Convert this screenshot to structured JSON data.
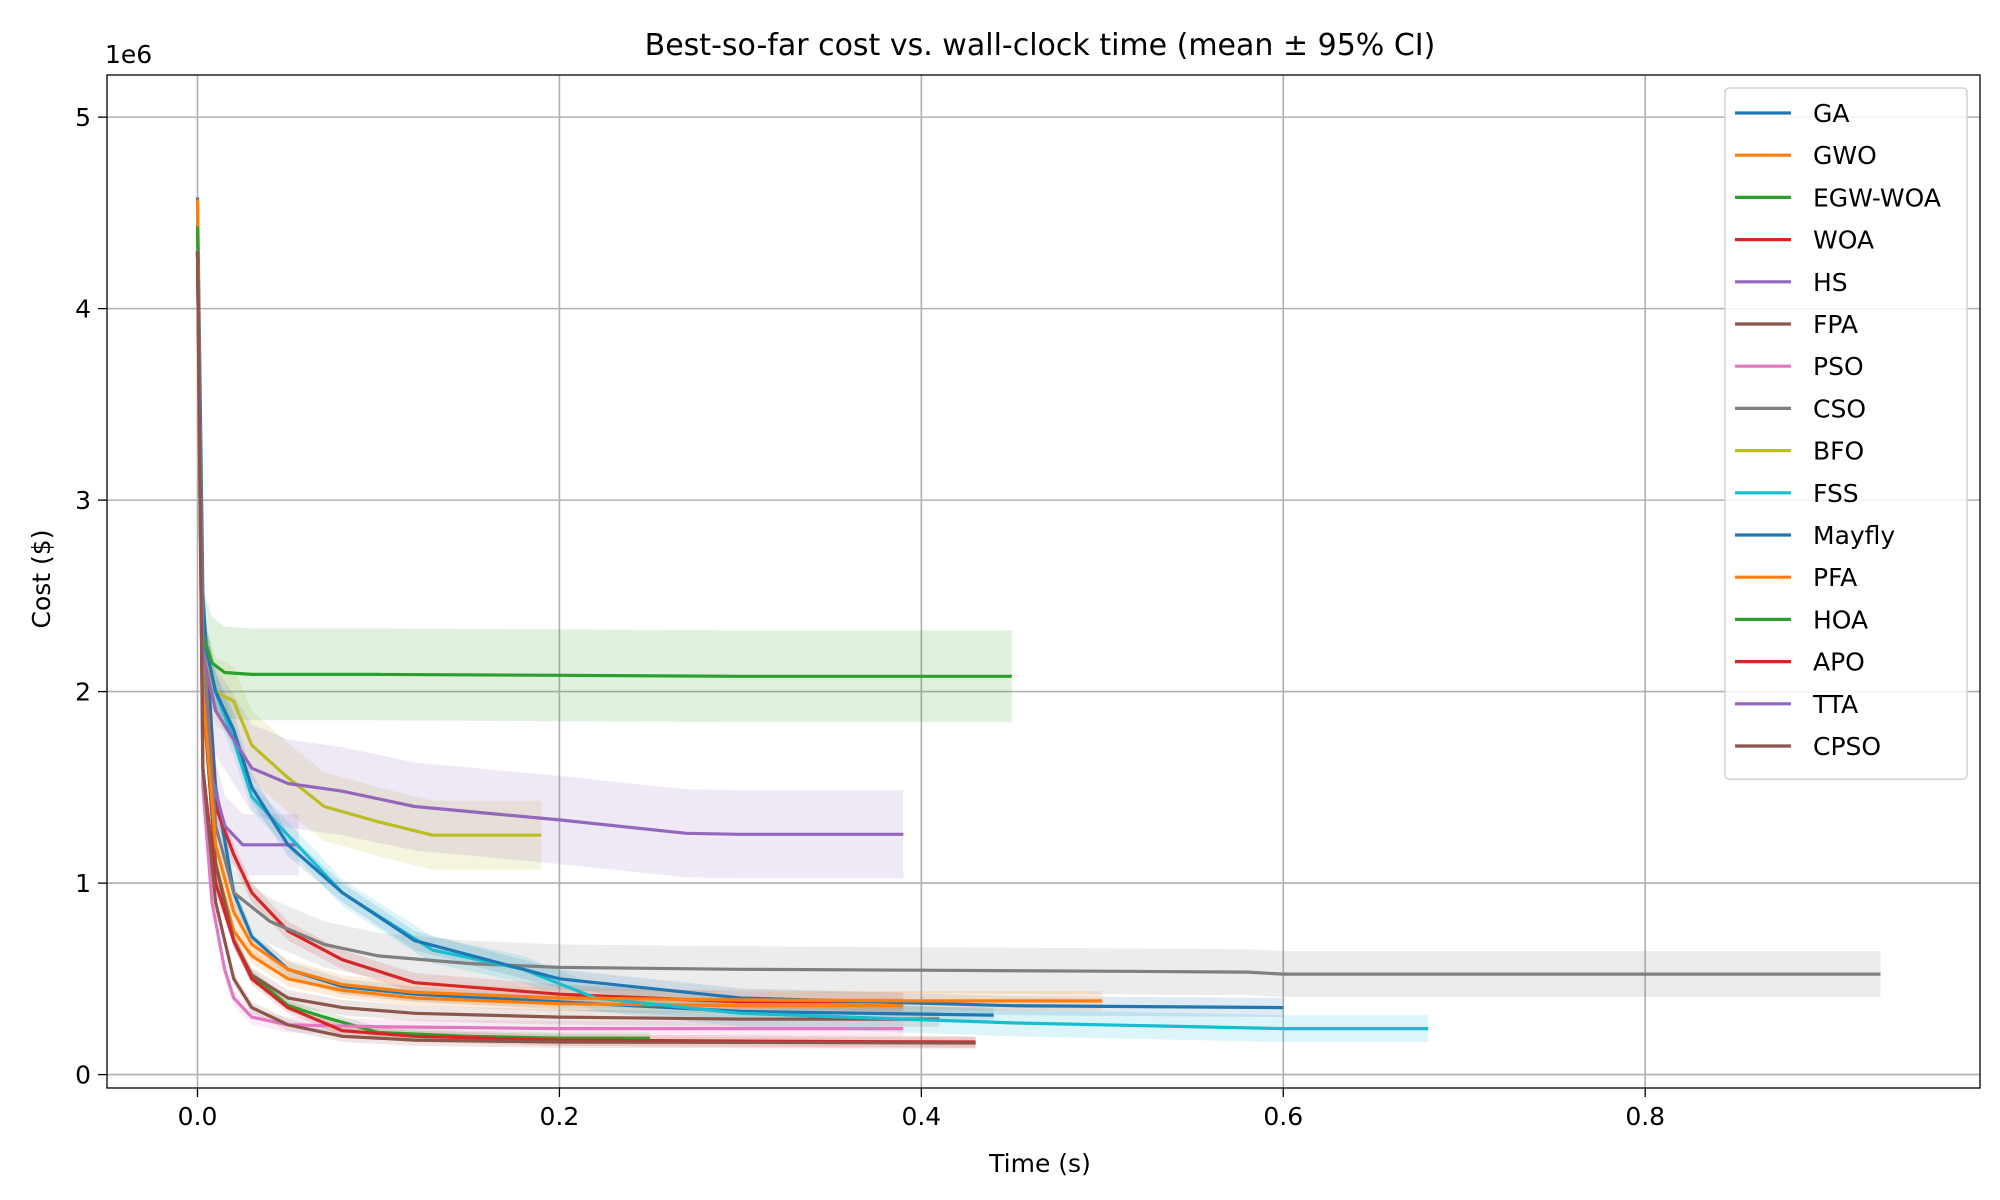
{
  "chart_data": {
    "type": "line",
    "title": "Best-so-far cost vs. wall-clock time (mean ± 95% CI)",
    "xlabel": "Time (s)",
    "ylabel": "Cost ($)",
    "y_multiplier_label": "1e6",
    "xlim": [
      -0.05,
      0.985
    ],
    "ylim": [
      -0.07,
      5.22
    ],
    "x_ticks": [
      0.0,
      0.2,
      0.4,
      0.6,
      0.8
    ],
    "x_tick_labels": [
      "0.0",
      "0.2",
      "0.4",
      "0.6",
      "0.8"
    ],
    "y_ticks": [
      0,
      1,
      2,
      3,
      4,
      5
    ],
    "y_tick_labels": [
      "0",
      "1",
      "2",
      "3",
      "4",
      "5"
    ],
    "grid": true,
    "legend_position": "top-right",
    "series": [
      {
        "name": "GA",
        "color": "#1f77b4",
        "ci": 0.04,
        "x": [
          0,
          0.003,
          0.01,
          0.02,
          0.03,
          0.05,
          0.08,
          0.12,
          0.2,
          0.3,
          0.44
        ],
        "y": [
          4.58,
          2.5,
          1.5,
          0.95,
          0.72,
          0.55,
          0.46,
          0.42,
          0.38,
          0.33,
          0.31
        ]
      },
      {
        "name": "GWO",
        "color": "#ff7f0e",
        "ci": 0.04,
        "x": [
          0,
          0.003,
          0.01,
          0.02,
          0.03,
          0.05,
          0.08,
          0.12,
          0.2,
          0.3,
          0.39
        ],
        "y": [
          4.57,
          2.0,
          1.1,
          0.75,
          0.62,
          0.5,
          0.44,
          0.4,
          0.37,
          0.36,
          0.36
        ]
      },
      {
        "name": "EGW-WOA",
        "color": "#2ca02c",
        "ci": 0.03,
        "x": [
          0,
          0.003,
          0.01,
          0.02,
          0.03,
          0.05,
          0.07,
          0.1,
          0.15,
          0.2,
          0.25
        ],
        "y": [
          4.43,
          2.0,
          1.1,
          0.7,
          0.52,
          0.36,
          0.3,
          0.22,
          0.2,
          0.19,
          0.19
        ]
      },
      {
        "name": "WOA",
        "color": "#d62728",
        "ci": 0.05,
        "x": [
          0,
          0.003,
          0.01,
          0.02,
          0.03,
          0.05,
          0.08,
          0.12,
          0.2,
          0.3,
          0.39
        ],
        "y": [
          4.3,
          2.3,
          1.4,
          1.15,
          0.95,
          0.75,
          0.6,
          0.48,
          0.42,
          0.38,
          0.38
        ]
      },
      {
        "name": "HS",
        "color": "#9467bd",
        "ci": 0.16,
        "x": [
          0,
          0.003,
          0.008,
          0.015,
          0.025,
          0.035,
          0.045,
          0.056
        ],
        "y": [
          4.3,
          2.2,
          1.55,
          1.3,
          1.2,
          1.2,
          1.2,
          1.2
        ]
      },
      {
        "name": "FPA",
        "color": "#8c564b",
        "ci": 0.04,
        "x": [
          0,
          0.003,
          0.01,
          0.02,
          0.03,
          0.05,
          0.08,
          0.12,
          0.2,
          0.3,
          0.41
        ],
        "y": [
          4.3,
          2.0,
          1.1,
          0.7,
          0.52,
          0.4,
          0.35,
          0.32,
          0.3,
          0.29,
          0.29
        ]
      },
      {
        "name": "PSO",
        "color": "#e377c2",
        "ci": 0.04,
        "x": [
          0,
          0.003,
          0.008,
          0.015,
          0.02,
          0.03,
          0.05,
          0.1,
          0.2,
          0.3,
          0.39
        ],
        "y": [
          4.3,
          1.5,
          0.9,
          0.55,
          0.4,
          0.3,
          0.26,
          0.25,
          0.24,
          0.24,
          0.24
        ]
      },
      {
        "name": "CSO",
        "color": "#7f7f7f",
        "ci": 0.12,
        "x": [
          0,
          0.003,
          0.01,
          0.02,
          0.04,
          0.07,
          0.1,
          0.15,
          0.2,
          0.3,
          0.4,
          0.5,
          0.58,
          0.6,
          0.7,
          0.8,
          0.93
        ],
        "y": [
          4.3,
          2.3,
          1.3,
          0.95,
          0.8,
          0.68,
          0.62,
          0.58,
          0.56,
          0.55,
          0.545,
          0.54,
          0.535,
          0.525,
          0.525,
          0.525,
          0.525
        ]
      },
      {
        "name": "BFO",
        "color": "#bcbd22",
        "ci": 0.18,
        "x": [
          0,
          0.003,
          0.01,
          0.02,
          0.03,
          0.05,
          0.07,
          0.1,
          0.13,
          0.19
        ],
        "y": [
          4.3,
          2.2,
          2.0,
          1.95,
          1.72,
          1.55,
          1.4,
          1.32,
          1.25,
          1.25
        ]
      },
      {
        "name": "FSS",
        "color": "#17becf",
        "ci": 0.07,
        "x": [
          0,
          0.003,
          0.01,
          0.02,
          0.03,
          0.05,
          0.08,
          0.1,
          0.13,
          0.18,
          0.22,
          0.3,
          0.45,
          0.6,
          0.68
        ],
        "y": [
          4.3,
          2.3,
          2.0,
          1.75,
          1.45,
          1.25,
          0.95,
          0.83,
          0.65,
          0.55,
          0.4,
          0.32,
          0.27,
          0.24,
          0.24
        ]
      },
      {
        "name": "Mayfly",
        "color": "#1f77b4",
        "ci": 0.05,
        "x": [
          0,
          0.003,
          0.01,
          0.02,
          0.03,
          0.05,
          0.08,
          0.12,
          0.2,
          0.3,
          0.45,
          0.6
        ],
        "y": [
          4.3,
          2.3,
          2.0,
          1.8,
          1.5,
          1.2,
          0.95,
          0.7,
          0.5,
          0.4,
          0.36,
          0.35
        ]
      },
      {
        "name": "PFA",
        "color": "#ff7f0e",
        "ci": 0.05,
        "x": [
          0,
          0.003,
          0.01,
          0.02,
          0.03,
          0.05,
          0.08,
          0.12,
          0.2,
          0.3,
          0.4,
          0.5
        ],
        "y": [
          4.3,
          2.0,
          1.2,
          0.85,
          0.68,
          0.55,
          0.47,
          0.43,
          0.4,
          0.39,
          0.385,
          0.385
        ]
      },
      {
        "name": "HOA",
        "color": "#2ca02c",
        "ci": 0.24,
        "x": [
          0,
          0.003,
          0.008,
          0.015,
          0.03,
          0.05,
          0.1,
          0.2,
          0.3,
          0.45
        ],
        "y": [
          4.3,
          2.3,
          2.15,
          2.1,
          2.09,
          2.09,
          2.09,
          2.085,
          2.08,
          2.08
        ]
      },
      {
        "name": "APO",
        "color": "#d62728",
        "ci": 0.03,
        "x": [
          0,
          0.003,
          0.01,
          0.02,
          0.03,
          0.05,
          0.08,
          0.12,
          0.2,
          0.3,
          0.43
        ],
        "y": [
          4.3,
          1.6,
          1.0,
          0.7,
          0.5,
          0.35,
          0.23,
          0.2,
          0.18,
          0.175,
          0.17
        ]
      },
      {
        "name": "TTA",
        "color": "#9467bd",
        "ci": 0.23,
        "x": [
          0,
          0.003,
          0.01,
          0.02,
          0.03,
          0.05,
          0.08,
          0.12,
          0.2,
          0.27,
          0.3,
          0.39
        ],
        "y": [
          4.3,
          2.2,
          1.9,
          1.75,
          1.6,
          1.52,
          1.48,
          1.4,
          1.33,
          1.26,
          1.255,
          1.255
        ]
      },
      {
        "name": "CPSO",
        "color": "#8c564b",
        "ci": 0.03,
        "x": [
          0,
          0.003,
          0.01,
          0.02,
          0.03,
          0.05,
          0.08,
          0.12,
          0.2,
          0.3,
          0.43
        ],
        "y": [
          4.3,
          1.6,
          0.9,
          0.5,
          0.35,
          0.26,
          0.2,
          0.18,
          0.17,
          0.168,
          0.165
        ]
      }
    ]
  }
}
